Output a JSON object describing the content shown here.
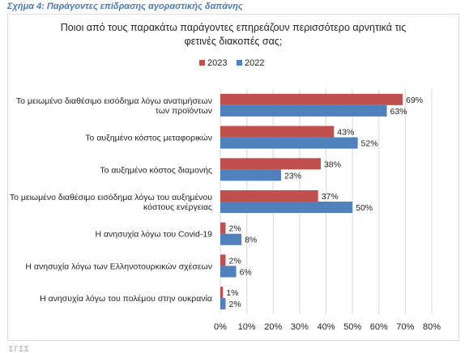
{
  "caption": "Σχήμα 4: Παράγοντες επίδρασης αγοραστικής δαπάνης",
  "footer_fragment": "ΣΓΣΣ",
  "colors": {
    "2023": "#c0504d",
    "2022": "#4f81bd"
  },
  "chart_data": {
    "type": "bar",
    "orientation": "horizontal",
    "title": "",
    "subtitle_lines": [
      "Ποιοι από τους παρακάτω παράγοντες επηρεάζουν περισσότερο αρνητικά τις",
      "φετινές διακοπές σας;"
    ],
    "categories": [
      [
        "Το μειωμένο διαθέσιμο εισόδημα λόγω ανατιμήσεων",
        "των προϊόντων"
      ],
      [
        "Το αυξημένο κόστος μεταφορικών"
      ],
      [
        "Το αυξημένο κόστος διαμονής"
      ],
      [
        "Το μειωμένο διαθέσιμο εισόδημα λόγω του αυξημένου",
        "κόστους ενέργειας"
      ],
      [
        "Η ανησυχία λόγω του Covid-19"
      ],
      [
        "Η ανησυχία λόγω των Ελληνοτουρκικών σχέσεων"
      ],
      [
        "Η ανησυχία λόγω του πολέμου στην ουκρανία"
      ]
    ],
    "series": [
      {
        "name": "2023",
        "values": [
          69,
          43,
          38,
          37,
          2,
          2,
          1
        ],
        "labels": [
          "69%",
          "43%",
          "38%",
          "37%",
          "2%",
          "2%",
          "1%"
        ]
      },
      {
        "name": "2022",
        "values": [
          63,
          52,
          23,
          50,
          8,
          6,
          2
        ],
        "labels": [
          "63%",
          "52%",
          "23%",
          "50%",
          "8%",
          "6%",
          "2%"
        ]
      }
    ],
    "xlim": [
      0,
      80
    ],
    "xticks": [
      "0%",
      "10%",
      "20%",
      "30%",
      "40%",
      "50%",
      "60%",
      "70%",
      "80%"
    ],
    "xlabel": "",
    "ylabel": "",
    "grid": true,
    "legend_position": "top-center"
  }
}
